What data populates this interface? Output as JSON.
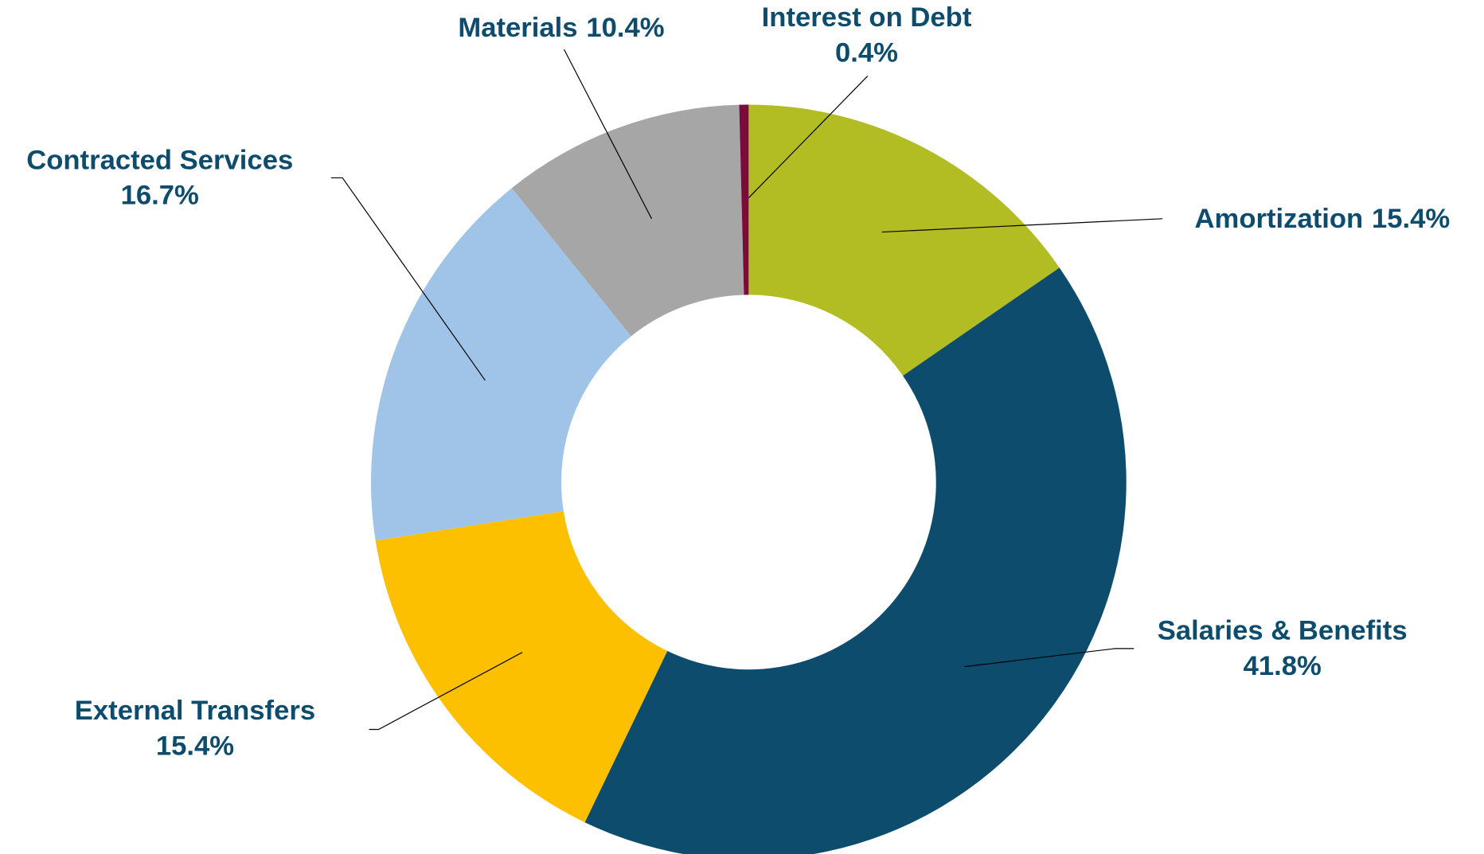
{
  "chart_data": {
    "type": "donut",
    "categories": [
      "Amortization",
      "Salaries & Benefits",
      "External Transfers",
      "Contracted Services",
      "Materials",
      "Interest on Debt"
    ],
    "values": [
      15.4,
      41.8,
      15.4,
      16.7,
      10.4,
      0.4
    ],
    "value_labels": [
      "15.4%",
      "41.8%",
      "15.4%",
      "16.7%",
      "10.4%",
      "0.4%"
    ],
    "colors": [
      "#b1bd23",
      "#0e4c6e",
      "#fcc000",
      "#9fc4e7",
      "#a6a6a6",
      "#7b0b3b"
    ]
  }
}
